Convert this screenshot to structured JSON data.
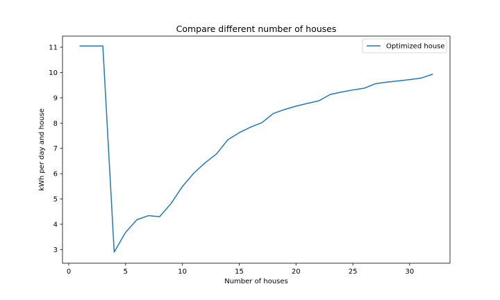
{
  "chart_data": {
    "type": "line",
    "title": "Compare different number of houses",
    "xlabel": "Number of houses",
    "ylabel": "kWh per day and house",
    "xlim": [
      -0.55,
      33.55
    ],
    "ylim": [
      2.46,
      11.44
    ],
    "xticks": [
      0,
      5,
      10,
      15,
      20,
      25,
      30
    ],
    "yticks": [
      3,
      4,
      5,
      6,
      7,
      8,
      9,
      10,
      11
    ],
    "grid": false,
    "legend_position": "top-right",
    "series": [
      {
        "name": "Optimized house",
        "color": "#1f77b4",
        "x": [
          1,
          2,
          3,
          4,
          5,
          6,
          7,
          8,
          9,
          10,
          11,
          12,
          13,
          14,
          15,
          16,
          17,
          18,
          19,
          20,
          21,
          22,
          23,
          24,
          25,
          26,
          27,
          28,
          29,
          30,
          31,
          32
        ],
        "y": [
          11.05,
          11.05,
          11.05,
          2.9,
          3.68,
          4.18,
          4.34,
          4.3,
          4.82,
          5.49,
          6.02,
          6.43,
          6.78,
          7.34,
          7.62,
          7.84,
          8.02,
          8.38,
          8.54,
          8.67,
          8.78,
          8.88,
          9.13,
          9.23,
          9.31,
          9.38,
          9.56,
          9.62,
          9.67,
          9.72,
          9.78,
          9.93
        ]
      }
    ]
  }
}
